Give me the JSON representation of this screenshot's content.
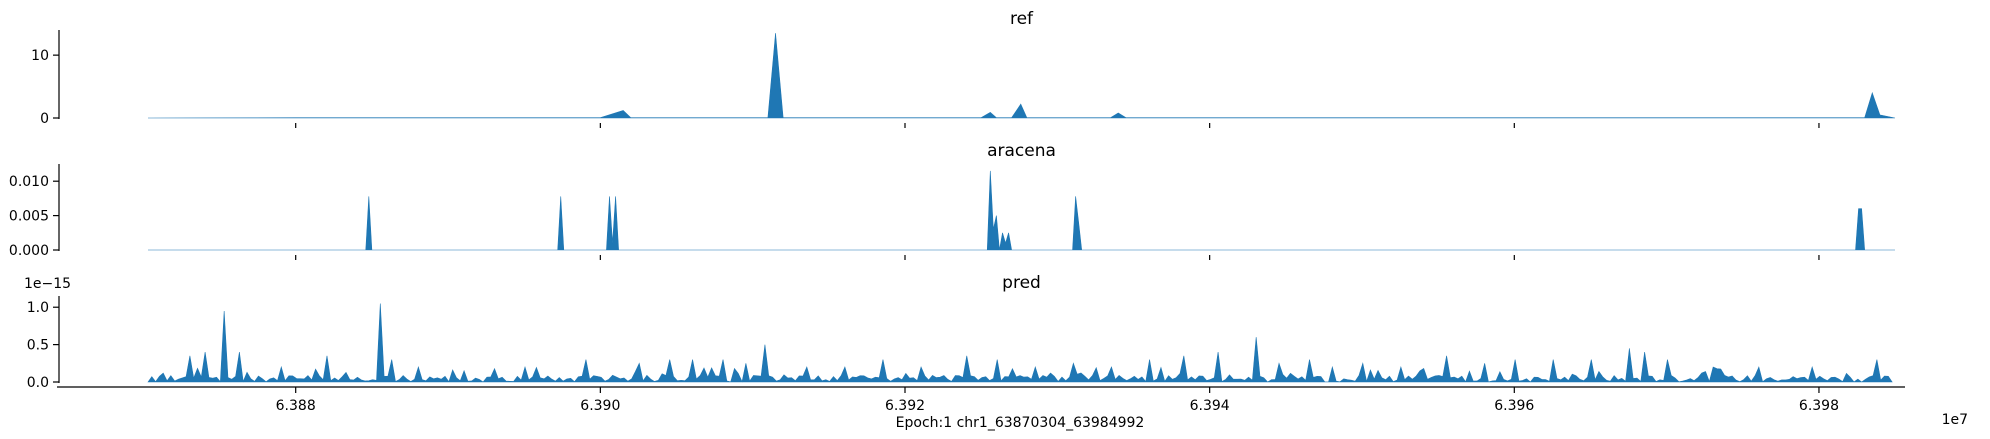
{
  "figure": {
    "xlabel": "Epoch:1 chr1_63870304_63984992",
    "x_offset_label": "1e7",
    "x_tick_labels": [
      "6.388",
      "6.390",
      "6.392",
      "6.394",
      "6.396",
      "6.398"
    ],
    "fill_color": "#1f77b4"
  },
  "chart_data": [
    {
      "type": "area",
      "title": "ref",
      "xlim": [
        63870304,
        63984992
      ],
      "ylim": [
        0,
        14
      ],
      "yticks": [
        0,
        10
      ],
      "ytick_labels": [
        "0",
        "10"
      ],
      "y_offset_label": "",
      "x": [
        63870304,
        63880000,
        63900000,
        63901500,
        63902000,
        63911000,
        63911500,
        63912000,
        63925000,
        63925600,
        63926000,
        63927000,
        63927600,
        63928000,
        63933500,
        63934000,
        63934500,
        63983000,
        63983500,
        63984000,
        63984992
      ],
      "values": [
        0,
        0.05,
        0.05,
        1.2,
        0.05,
        0.05,
        13.5,
        0.05,
        0.05,
        0.9,
        0.05,
        0.05,
        2.2,
        0.05,
        0.05,
        0.8,
        0.05,
        0.05,
        4.0,
        0.5,
        0
      ]
    },
    {
      "type": "area",
      "title": "aracena",
      "xlim": [
        63870304,
        63984992
      ],
      "ylim": [
        0,
        0.0125
      ],
      "yticks": [
        0,
        0.005,
        0.01
      ],
      "ytick_labels": [
        "0.000",
        "0.005",
        "0.010"
      ],
      "y_offset_label": "",
      "x": [
        63870304,
        63884600,
        63884800,
        63885000,
        63897200,
        63897400,
        63897600,
        63900400,
        63900600,
        63900800,
        63901000,
        63901200,
        63925400,
        63925600,
        63925800,
        63926000,
        63926200,
        63926400,
        63926600,
        63926800,
        63927000,
        63927200,
        63931000,
        63931200,
        63931400,
        63931600,
        63982400,
        63982600,
        63982800,
        63983000,
        63984992
      ],
      "values": [
        0,
        0,
        0.0078,
        0,
        0,
        0.0078,
        0,
        0,
        0.0078,
        0.001,
        0.0078,
        0,
        0,
        0.0115,
        0.003,
        0.005,
        0,
        0.0025,
        0.001,
        0.0025,
        0,
        0,
        0,
        0.0078,
        0.004,
        0,
        0,
        0.006,
        0.006,
        0,
        0
      ]
    },
    {
      "type": "area",
      "title": "pred",
      "xlim": [
        63870304,
        63984992
      ],
      "ylim": [
        0,
        1.15
      ],
      "yticks": [
        0,
        0.5,
        1.0
      ],
      "ytick_labels": [
        "0.0",
        "0.5",
        "1.0"
      ],
      "y_offset_label": "1e−15",
      "baseline": 0.05,
      "peak_spacing": 250,
      "peaks": [
        [
          63873000,
          0.35
        ],
        [
          63874000,
          0.4
        ],
        [
          63875200,
          0.95
        ],
        [
          63876300,
          0.4
        ],
        [
          63879000,
          0.2
        ],
        [
          63882000,
          0.35
        ],
        [
          63885500,
          1.05
        ],
        [
          63886200,
          0.3
        ],
        [
          63888000,
          0.2
        ],
        [
          63891000,
          0.15
        ],
        [
          63895000,
          0.2
        ],
        [
          63899000,
          0.3
        ],
        [
          63902500,
          0.25
        ],
        [
          63904500,
          0.3
        ],
        [
          63906000,
          0.3
        ],
        [
          63908000,
          0.3
        ],
        [
          63909500,
          0.25
        ],
        [
          63910900,
          0.5
        ],
        [
          63913500,
          0.2
        ],
        [
          63916000,
          0.2
        ],
        [
          63918500,
          0.3
        ],
        [
          63921000,
          0.2
        ],
        [
          63924000,
          0.35
        ],
        [
          63926000,
          0.3
        ],
        [
          63928500,
          0.2
        ],
        [
          63931000,
          0.25
        ],
        [
          63933500,
          0.2
        ],
        [
          63936000,
          0.3
        ],
        [
          63938200,
          0.35
        ],
        [
          63940500,
          0.4
        ],
        [
          63943000,
          0.6
        ],
        [
          63944500,
          0.25
        ],
        [
          63946500,
          0.3
        ],
        [
          63948000,
          0.2
        ],
        [
          63950000,
          0.25
        ],
        [
          63952500,
          0.2
        ],
        [
          63955500,
          0.35
        ],
        [
          63958000,
          0.25
        ],
        [
          63960000,
          0.3
        ],
        [
          63962500,
          0.3
        ],
        [
          63965000,
          0.3
        ],
        [
          63967500,
          0.45
        ],
        [
          63968500,
          0.4
        ],
        [
          63970000,
          0.3
        ],
        [
          63973000,
          0.2
        ],
        [
          63976000,
          0.2
        ],
        [
          63979500,
          0.2
        ],
        [
          63983800,
          0.3
        ]
      ]
    }
  ]
}
